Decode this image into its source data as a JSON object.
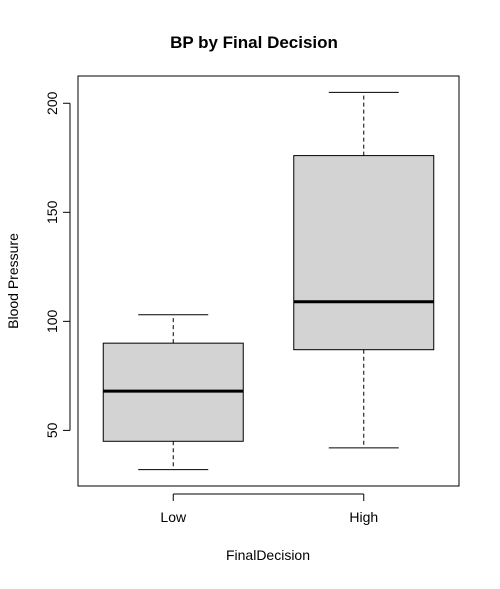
{
  "chart_data": {
    "type": "box",
    "title": "BP by Final Decision",
    "xlabel": "FinalDecision",
    "ylabel": "Blood Pressure",
    "categories": [
      "Low",
      "High"
    ],
    "boxes": [
      {
        "category": "Low",
        "whisker_low": 32,
        "q1": 45,
        "median": 68,
        "q3": 90,
        "whisker_high": 103
      },
      {
        "category": "High",
        "whisker_low": 42,
        "q1": 87,
        "median": 109,
        "q3": 176,
        "whisker_high": 205
      }
    ],
    "yticks": [
      50,
      100,
      150,
      200
    ],
    "ylim": [
      24.5,
      212.5
    ],
    "grid": false,
    "colors": {
      "box_fill": "#d3d3d3",
      "stroke": "#000000"
    }
  }
}
